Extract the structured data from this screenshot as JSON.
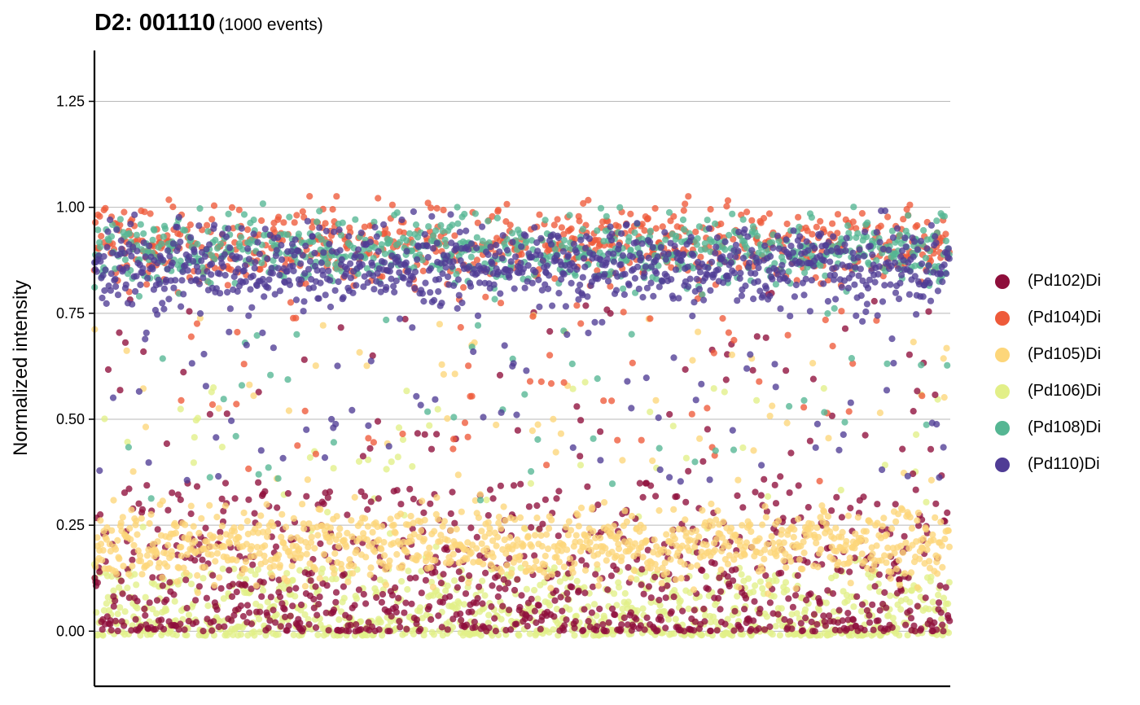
{
  "chart_data": {
    "type": "scatter",
    "title": "D2: 001110",
    "subtitle": "(1000 events)",
    "xlabel": "",
    "ylabel": "Normalized intensity",
    "ylim": [
      -0.13,
      1.37
    ],
    "xlim": [
      0,
      1000
    ],
    "yticks": [
      "0.00",
      "0.25",
      "0.50",
      "0.75",
      "1.00",
      "1.25"
    ],
    "ytick_values": [
      0,
      0.25,
      0.5,
      0.75,
      1.0,
      1.25
    ],
    "grid": "horizontal",
    "legend_position": "right",
    "series": [
      {
        "name": "(Pd102)Di",
        "color": "#8E0E3B",
        "typical_range": [
          0.0,
          0.35
        ],
        "outlier_band": [
          0.35,
          0.8
        ]
      },
      {
        "name": "(Pd104)Di",
        "color": "#EE5A3A",
        "typical_range": [
          0.78,
          1.05
        ],
        "outlier_band": [
          0.35,
          0.8
        ]
      },
      {
        "name": "(Pd105)Di",
        "color": "#FDD67A",
        "typical_range": [
          0.08,
          0.33
        ],
        "outlier_band": [
          0.35,
          0.75
        ]
      },
      {
        "name": "(Pd106)Di",
        "color": "#E2EF88",
        "typical_range": [
          -0.01,
          0.15
        ],
        "outlier_band": [
          0.15,
          0.6
        ]
      },
      {
        "name": "(Pd108)Di",
        "color": "#55B693",
        "typical_range": [
          0.78,
          1.02
        ],
        "outlier_band": [
          0.3,
          0.8
        ]
      },
      {
        "name": "(Pd110)Di",
        "color": "#4F3C95",
        "typical_range": [
          0.72,
          1.0
        ],
        "outlier_band": [
          0.35,
          0.75
        ]
      }
    ]
  }
}
